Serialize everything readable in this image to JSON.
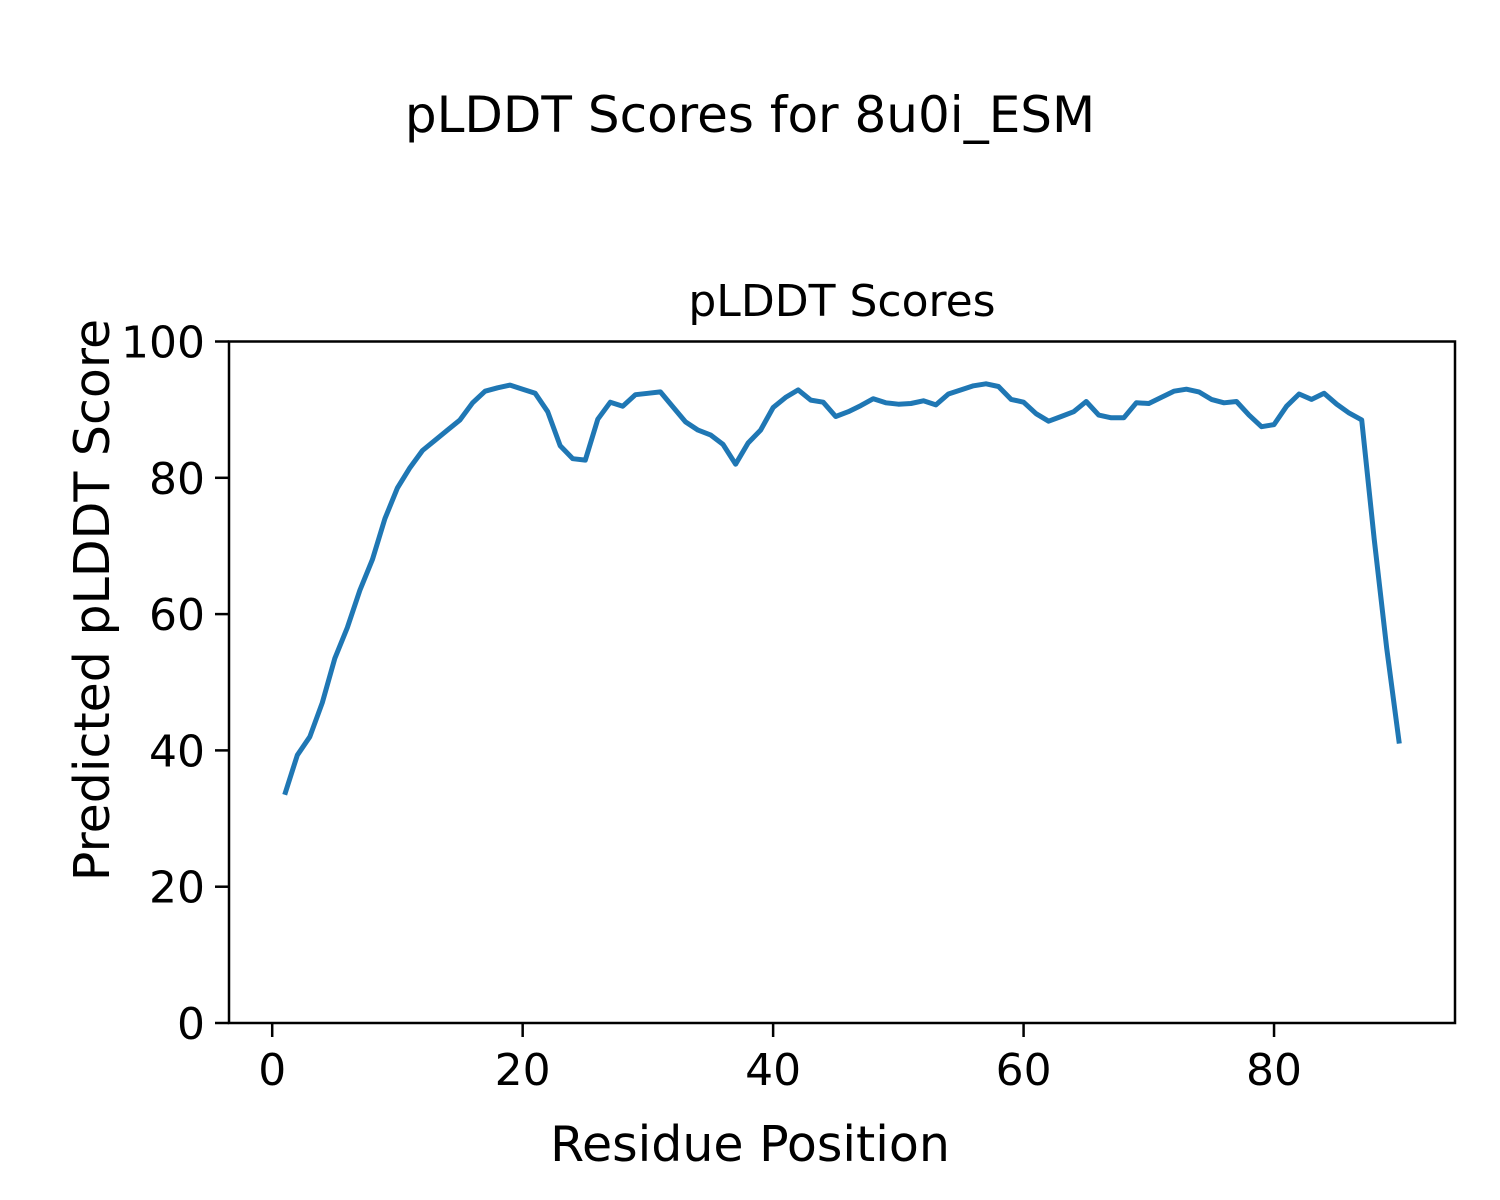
{
  "chart_data": {
    "type": "line",
    "suptitle": "pLDDT Scores for 8u0i_ESM",
    "title": "pLDDT Scores",
    "xlabel": "Residue Position",
    "ylabel": "Predicted pLDDT Score",
    "grid": false,
    "legend": "none",
    "line_color": "#1f77b4",
    "line_width": 5,
    "axis_color": "#000000",
    "xlim": [
      -3.45,
      94.45
    ],
    "ylim": [
      0,
      100
    ],
    "x_ticks": [
      0,
      20,
      40,
      60,
      80
    ],
    "y_ticks": [
      0,
      20,
      40,
      60,
      80,
      100
    ],
    "series_name": "pLDDT",
    "x": [
      1,
      2,
      3,
      4,
      5,
      6,
      7,
      8,
      9,
      10,
      11,
      12,
      13,
      14,
      15,
      16,
      17,
      18,
      19,
      20,
      21,
      22,
      23,
      24,
      25,
      26,
      27,
      28,
      29,
      30,
      31,
      32,
      33,
      34,
      35,
      36,
      37,
      38,
      39,
      40,
      41,
      42,
      43,
      44,
      45,
      46,
      47,
      48,
      49,
      50,
      51,
      52,
      53,
      54,
      55,
      56,
      57,
      58,
      59,
      60,
      61,
      62,
      63,
      64,
      65,
      66,
      67,
      68,
      69,
      70,
      71,
      72,
      73,
      74,
      75,
      76,
      77,
      78,
      79,
      80,
      81,
      82,
      83,
      84,
      85,
      86,
      87,
      88,
      89,
      90
    ],
    "y": [
      33.5,
      39.3,
      42.0,
      47.0,
      53.5,
      58.0,
      63.5,
      68.0,
      74.0,
      78.5,
      81.5,
      84.0,
      85.5,
      87.0,
      88.5,
      91.0,
      92.7,
      93.2,
      93.6,
      93.0,
      92.4,
      89.7,
      84.7,
      82.8,
      82.6,
      88.6,
      91.1,
      90.5,
      92.2,
      92.4,
      92.6,
      90.4,
      88.2,
      87.0,
      86.3,
      84.9,
      82.0,
      85.1,
      87.0,
      90.3,
      91.8,
      92.9,
      91.4,
      91.1,
      89.0,
      89.7,
      90.6,
      91.6,
      91.0,
      90.8,
      90.9,
      91.3,
      90.7,
      92.3,
      92.9,
      93.5,
      93.8,
      93.4,
      91.5,
      91.1,
      89.4,
      88.3,
      89.0,
      89.7,
      91.2,
      89.2,
      88.8,
      88.8,
      91.0,
      90.9,
      91.8,
      92.7,
      93.0,
      92.6,
      91.5,
      91.0,
      91.2,
      89.2,
      87.5,
      87.8,
      90.5,
      92.3,
      91.5,
      92.4,
      90.8,
      89.5,
      88.5,
      71.0,
      55.0,
      41.0
    ]
  }
}
